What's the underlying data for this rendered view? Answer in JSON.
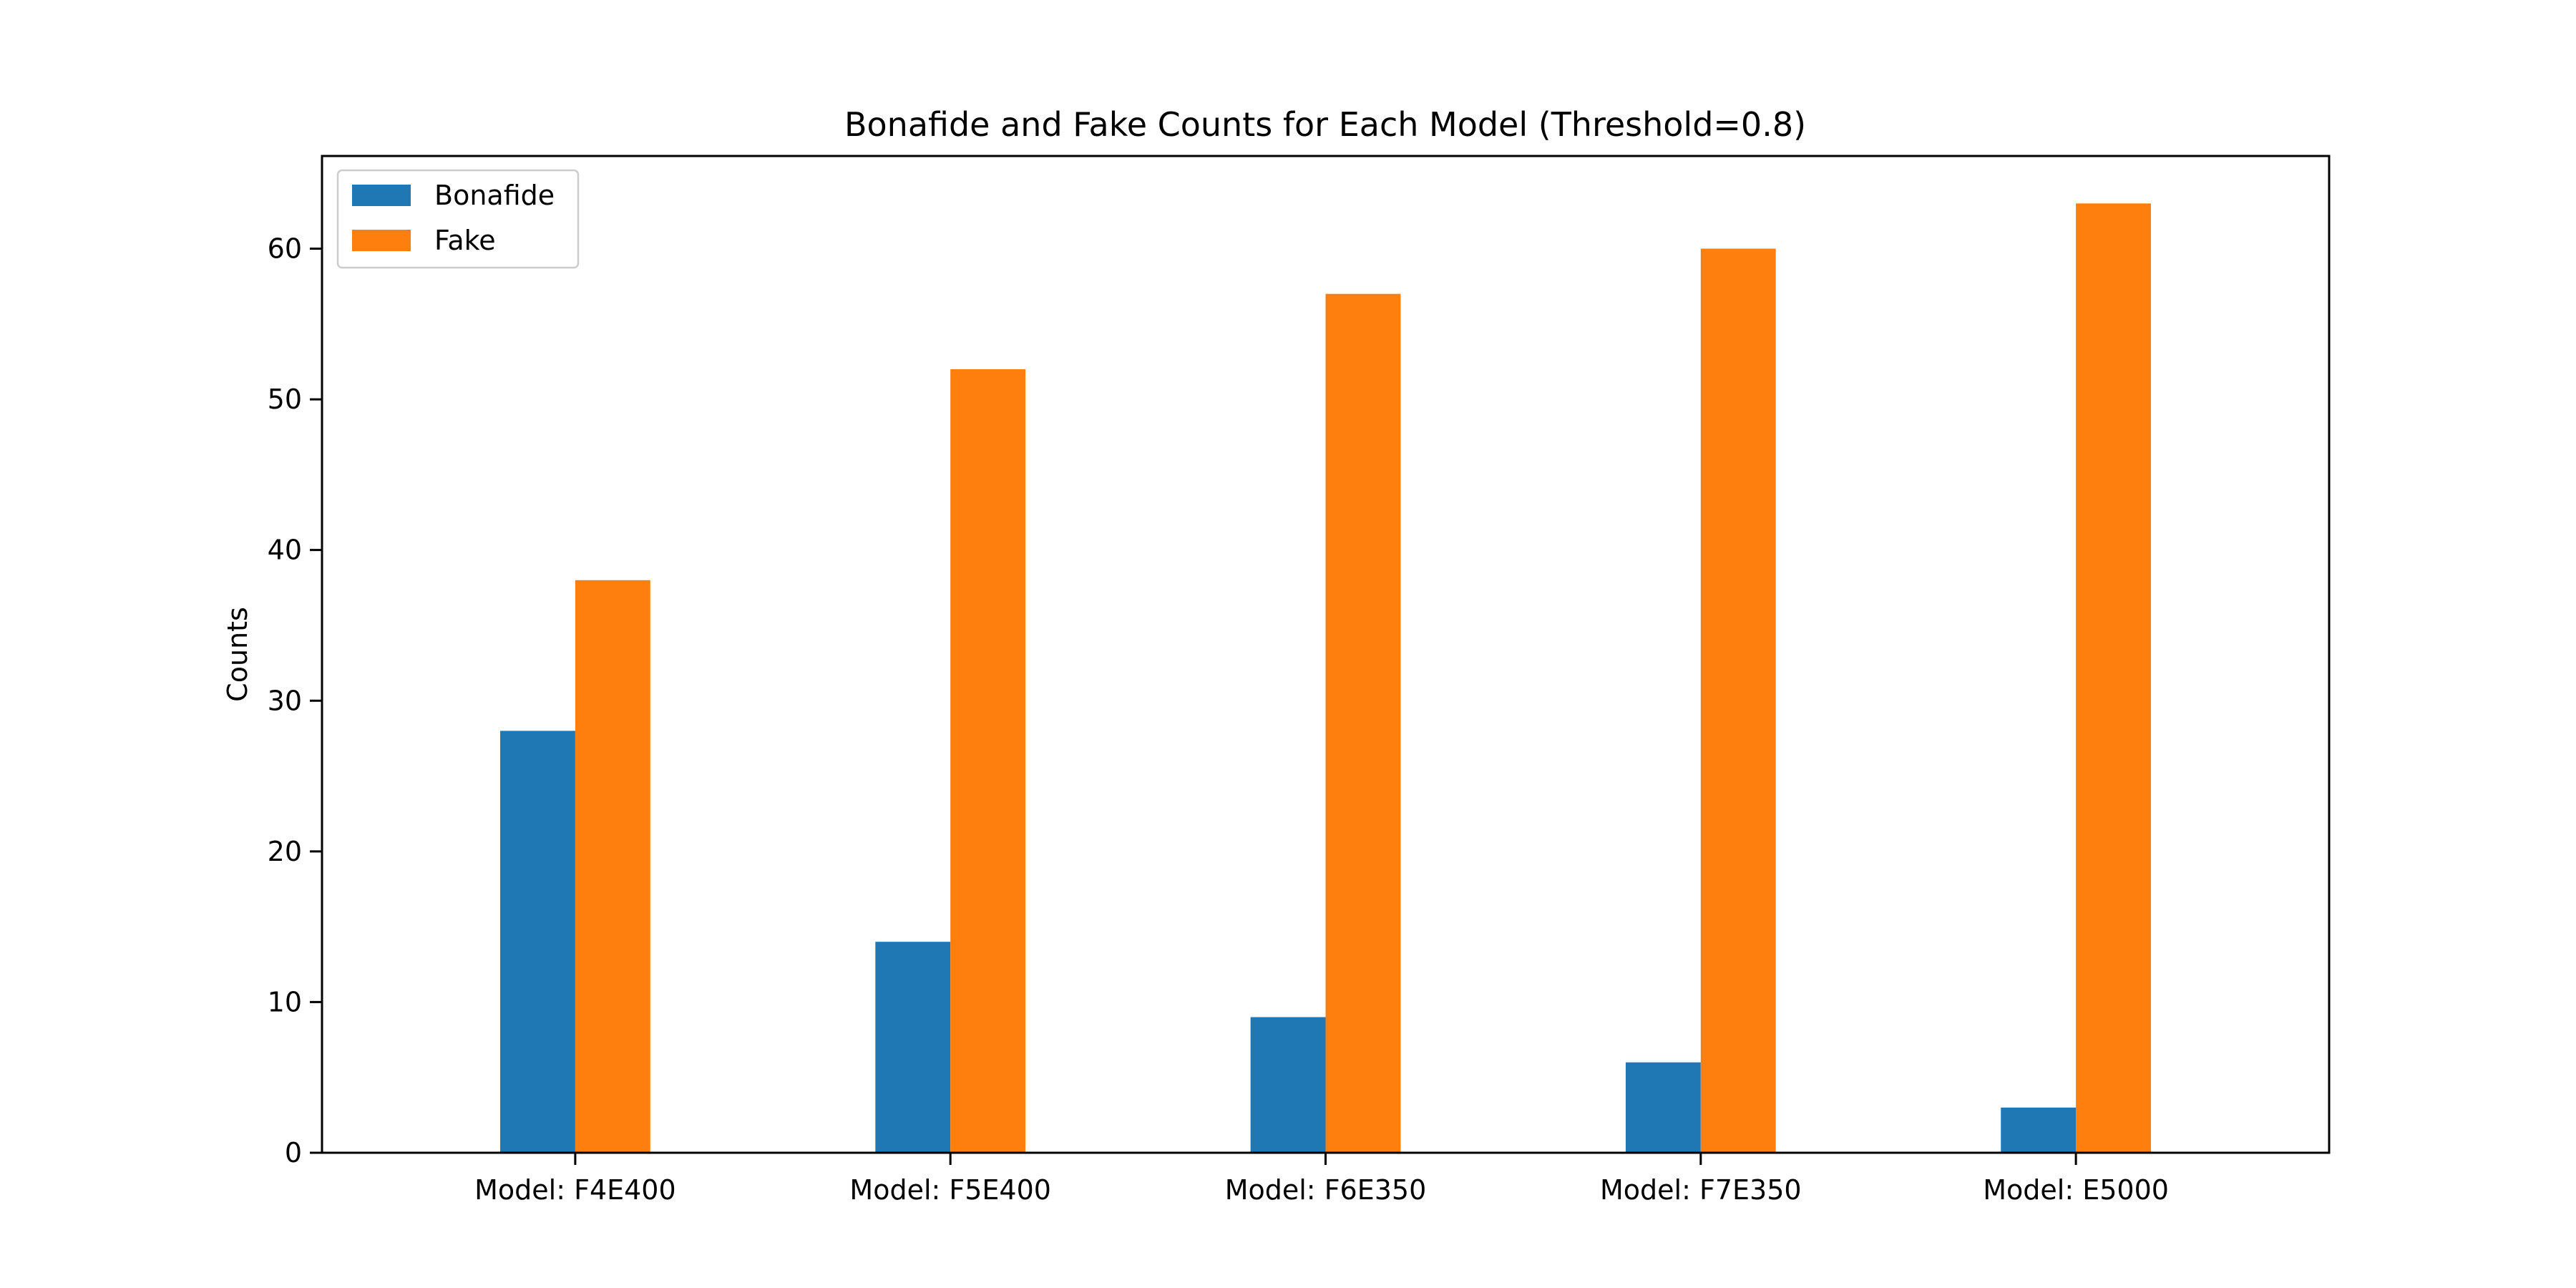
{
  "chart_data": {
    "type": "bar",
    "title": "Bonafide and Fake Counts for Each Model (Threshold=0.8)",
    "xlabel": "",
    "ylabel": "Counts",
    "categories": [
      "Model: F4E400",
      "Model: F5E400",
      "Model: F6E350",
      "Model: F7E350",
      "Model: E5000"
    ],
    "series": [
      {
        "name": "Bonafide",
        "color": "#1f77b4",
        "values": [
          28,
          14,
          9,
          6,
          3
        ]
      },
      {
        "name": "Fake",
        "color": "#ff7f0e",
        "values": [
          38,
          52,
          57,
          60,
          63
        ]
      }
    ],
    "ylim": [
      0,
      66.15
    ],
    "yticks": [
      0,
      10,
      20,
      30,
      40,
      50,
      60
    ],
    "grid": false,
    "legend_position": "upper left"
  }
}
